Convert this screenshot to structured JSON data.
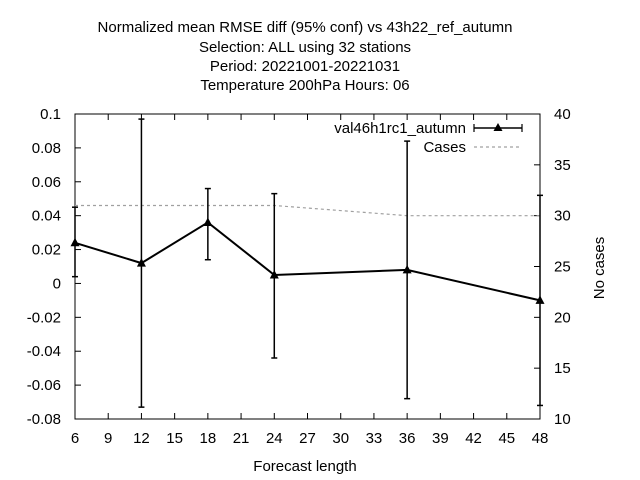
{
  "chart_data": {
    "type": "line",
    "title_lines": [
      "Normalized mean RMSE diff (95% conf) vs 43h22_ref_autumn",
      "Selection: ALL using    32 stations",
      "Period: 20221001-20221031",
      "Temperature 200hPa   Hours:  06"
    ],
    "xlabel": "Forecast length",
    "ylabel": "",
    "y2label": "No cases",
    "xlim": [
      6,
      48
    ],
    "ylim": [
      -0.08,
      0.1
    ],
    "y2lim": [
      10,
      40
    ],
    "x_ticks": [
      6,
      9,
      12,
      15,
      18,
      21,
      24,
      27,
      30,
      33,
      36,
      39,
      42,
      45,
      48
    ],
    "y_ticks": [
      -0.08,
      -0.06,
      -0.04,
      -0.02,
      0,
      0.02,
      0.04,
      0.06,
      0.08,
      0.1
    ],
    "y_tick_labels": [
      "-0.08",
      "-0.06",
      "-0.04",
      "-0.02",
      "0",
      "0.02",
      "0.04",
      "0.06",
      "0.08",
      "0.1"
    ],
    "y2_ticks": [
      10,
      15,
      20,
      25,
      30,
      35,
      40
    ],
    "grid": false,
    "legend_position": "top-right",
    "series": [
      {
        "name": "val46h1rc1_autumn",
        "axis": "y",
        "color": "#000000",
        "x": [
          6,
          12,
          18,
          24,
          36,
          48
        ],
        "values": [
          0.024,
          0.012,
          0.036,
          0.005,
          0.008,
          -0.01
        ],
        "err_low": [
          0.004,
          -0.073,
          0.014,
          -0.044,
          -0.068,
          -0.072
        ],
        "err_high": [
          0.045,
          0.097,
          0.056,
          0.053,
          0.084,
          0.052
        ]
      },
      {
        "name": "Cases",
        "axis": "y2",
        "color": "#a0a0a0",
        "x": [
          6,
          12,
          18,
          24,
          36,
          48
        ],
        "values": [
          31,
          31,
          31,
          31,
          30,
          30
        ]
      }
    ]
  }
}
